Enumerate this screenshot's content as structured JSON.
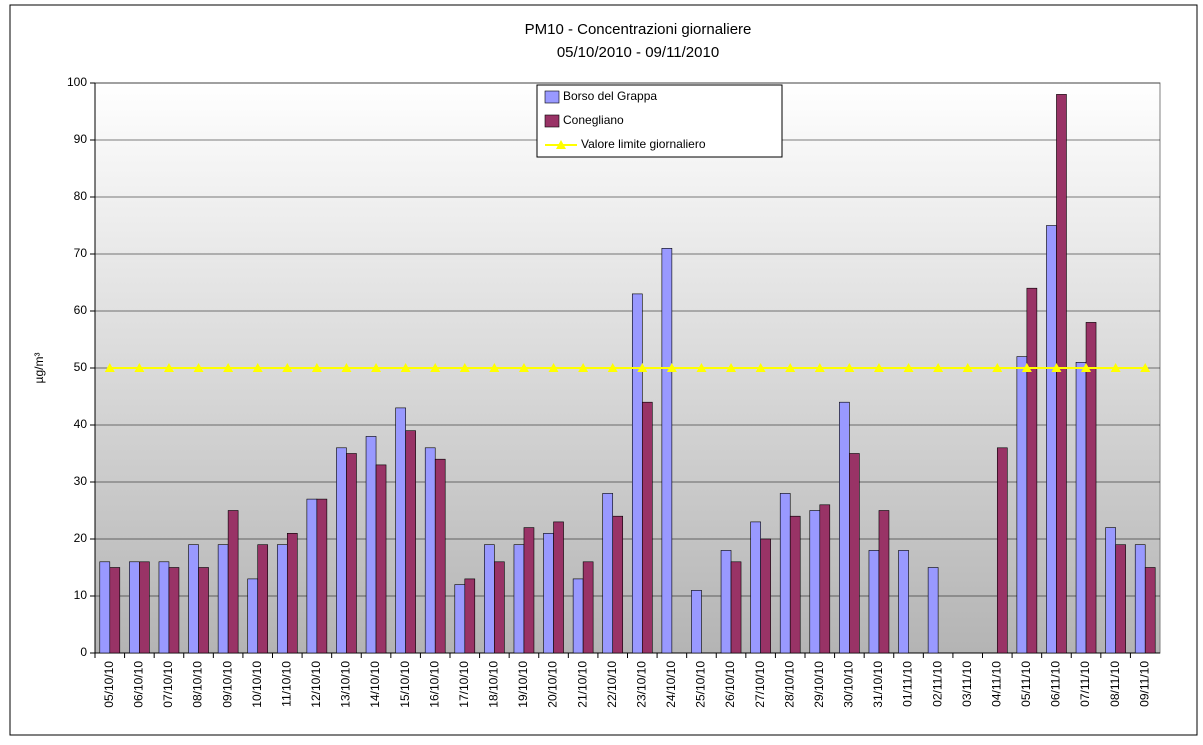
{
  "chart_data": {
    "type": "bar",
    "title": "PM10 - Concentrazioni giornaliere",
    "subtitle": "05/10/2010 - 09/11/2010",
    "y_label": "µg/m³",
    "categories": [
      "05/10/10",
      "06/10/10",
      "07/10/10",
      "08/10/10",
      "09/10/10",
      "10/10/10",
      "11/10/10",
      "12/10/10",
      "13/10/10",
      "14/10/10",
      "15/10/10",
      "16/10/10",
      "17/10/10",
      "18/10/10",
      "19/10/10",
      "20/10/10",
      "21/10/10",
      "22/10/10",
      "23/10/10",
      "24/10/10",
      "25/10/10",
      "26/10/10",
      "27/10/10",
      "28/10/10",
      "29/10/10",
      "30/10/10",
      "31/10/10",
      "01/11/10",
      "02/11/10",
      "03/11/10",
      "04/11/10",
      "05/11/10",
      "06/11/10",
      "07/11/10",
      "08/11/10",
      "09/11/10"
    ],
    "series": [
      {
        "name": "Borso del Grappa",
        "color": "#9999ff",
        "values": [
          16,
          16,
          16,
          19,
          19,
          13,
          19,
          27,
          36,
          38,
          43,
          36,
          12,
          19,
          19,
          21,
          13,
          28,
          63,
          71,
          11,
          18,
          23,
          28,
          25,
          44,
          18,
          18,
          15,
          null,
          null,
          52,
          75,
          51,
          22,
          19
        ]
      },
      {
        "name": "Conegliano",
        "color": "#993366",
        "values": [
          15,
          16,
          15,
          15,
          25,
          19,
          21,
          27,
          35,
          33,
          39,
          34,
          13,
          16,
          22,
          23,
          16,
          24,
          44,
          null,
          null,
          16,
          20,
          24,
          26,
          35,
          25,
          null,
          null,
          null,
          36,
          64,
          98,
          58,
          19,
          15
        ]
      },
      {
        "name": "Valore limite giornaliero",
        "color": "#ffff00",
        "type": "line",
        "marker": "triangle",
        "values": [
          50,
          50,
          50,
          50,
          50,
          50,
          50,
          50,
          50,
          50,
          50,
          50,
          50,
          50,
          50,
          50,
          50,
          50,
          50,
          50,
          50,
          50,
          50,
          50,
          50,
          50,
          50,
          50,
          50,
          50,
          50,
          50,
          50,
          50,
          50,
          50
        ]
      }
    ],
    "ylim": [
      0,
      100
    ],
    "yticks": [
      0,
      10,
      20,
      30,
      40,
      50,
      60,
      70,
      80,
      90,
      100
    ],
    "grid": true
  }
}
